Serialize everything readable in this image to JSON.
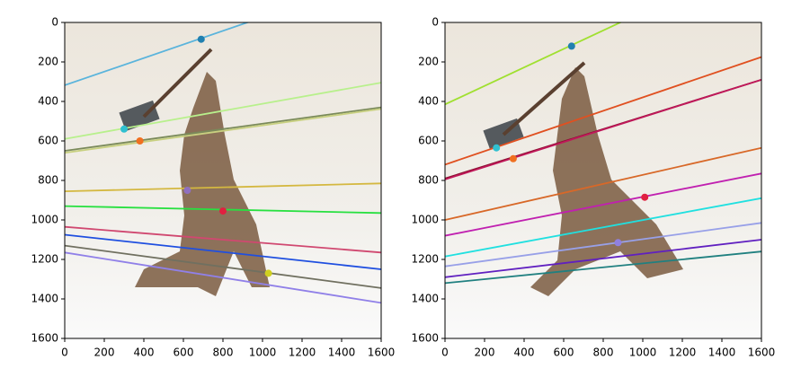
{
  "chart_data": [
    {
      "type": "line",
      "x": [
        0,
        1600
      ],
      "xlim": [
        0,
        1600
      ],
      "ylim": [
        1600,
        0
      ],
      "xticks": [
        0,
        200,
        400,
        600,
        800,
        1000,
        1200,
        1400,
        1600
      ],
      "yticks": [
        0,
        200,
        400,
        600,
        800,
        1000,
        1200,
        1400,
        1600
      ],
      "series": [
        {
          "color": "#5ab4dc",
          "values": [
            318,
            -233
          ]
        },
        {
          "color": "#b8f08c",
          "values": [
            590,
            305
          ]
        },
        {
          "color": "#7a8a5a",
          "values": [
            650,
            430
          ]
        },
        {
          "color": "#c8d080",
          "values": [
            660,
            438
          ]
        },
        {
          "color": "#d4b840",
          "values": [
            855,
            815
          ]
        },
        {
          "color": "#28e040",
          "values": [
            930,
            965
          ]
        },
        {
          "color": "#d04870",
          "values": [
            1035,
            1165
          ]
        },
        {
          "color": "#1f4fe0",
          "values": [
            1075,
            1250
          ]
        },
        {
          "color": "#707060",
          "values": [
            1130,
            1345
          ]
        },
        {
          "color": "#9080e8",
          "values": [
            1165,
            1420
          ]
        }
      ],
      "points": {
        "x": [
          690,
          300,
          380,
          620,
          800,
          1030
        ],
        "y": [
          85,
          540,
          600,
          850,
          955,
          1270
        ],
        "colors": [
          "#2080b0",
          "#30c0d0",
          "#f07020",
          "#9070c0",
          "#e02040",
          "#d0d020"
        ]
      }
    },
    {
      "type": "line",
      "x": [
        0,
        1600
      ],
      "xlim": [
        0,
        1600
      ],
      "ylim": [
        1600,
        0
      ],
      "xticks": [
        0,
        200,
        400,
        600,
        800,
        1000,
        1200,
        1400,
        1600
      ],
      "yticks": [
        0,
        200,
        400,
        600,
        800,
        1000,
        1200,
        1400,
        1600
      ],
      "series": [
        {
          "color": "#a0e030",
          "values": [
            415,
            -334
          ]
        },
        {
          "color": "#e05020",
          "values": [
            720,
            175
          ]
        },
        {
          "color": "#8a1030",
          "values": [
            790,
            290
          ]
        },
        {
          "color": "#c0185a",
          "values": [
            795,
            290
          ]
        },
        {
          "color": "#d86828",
          "values": [
            1000,
            635
          ]
        },
        {
          "color": "#c020b0",
          "values": [
            1080,
            765
          ]
        },
        {
          "color": "#20e0e0",
          "values": [
            1185,
            890
          ]
        },
        {
          "color": "#98a0e8",
          "values": [
            1235,
            1015
          ]
        },
        {
          "color": "#6020c0",
          "values": [
            1290,
            1100
          ]
        },
        {
          "color": "#208080",
          "values": [
            1320,
            1160
          ]
        }
      ],
      "points": {
        "x": [
          640,
          260,
          345,
          1010,
          875
        ],
        "y": [
          120,
          635,
          690,
          885,
          1115
        ],
        "colors": [
          "#2080b0",
          "#30c0d0",
          "#f07020",
          "#e02040",
          "#9080e0"
        ]
      }
    }
  ]
}
